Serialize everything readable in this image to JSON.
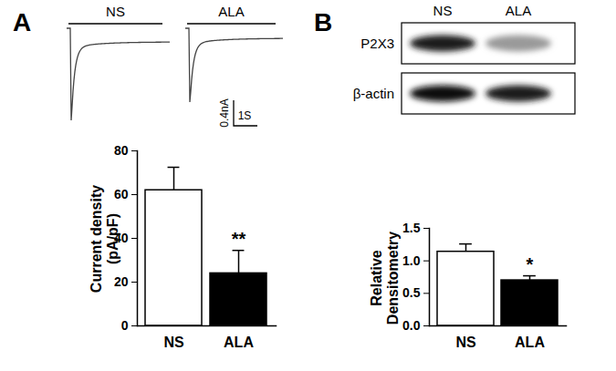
{
  "chart_data": [
    {
      "type": "bar",
      "title": "A",
      "categories": [
        "NS",
        "ALA"
      ],
      "values": [
        62,
        24
      ],
      "errors": [
        10.5,
        10.5
      ],
      "colors": [
        "#ffffff",
        "#000000"
      ],
      "y_label": "Current density\n(pA/pF)",
      "ylim": [
        0,
        80
      ],
      "yticks": [
        0,
        20,
        40,
        60,
        80
      ],
      "annotations": [
        {
          "category": "ALA",
          "text": "**"
        }
      ],
      "inset": {
        "type": "traces",
        "labels": [
          "NS",
          "ALA"
        ],
        "scale_bar": [
          "0.4nA",
          "1S"
        ]
      }
    },
    {
      "type": "bar",
      "title": "B",
      "categories": [
        "NS",
        "ALA"
      ],
      "values": [
        1.14,
        0.7
      ],
      "errors": [
        0.12,
        0.07
      ],
      "colors": [
        "#ffffff",
        "#000000"
      ],
      "y_label": "Relative\nDensitometry",
      "ylim": [
        0,
        1.5
      ],
      "yticks": [
        {
          "value": 0,
          "label": "0.0"
        },
        0.5,
        {
          "value": 1,
          "label": "1.0"
        },
        1.5
      ],
      "annotations": [
        {
          "category": "ALA",
          "text": "*"
        }
      ],
      "inset": {
        "type": "western_blot",
        "lanes": [
          "NS",
          "ALA"
        ],
        "rows": [
          "P2X3",
          "β-actin"
        ]
      }
    }
  ]
}
